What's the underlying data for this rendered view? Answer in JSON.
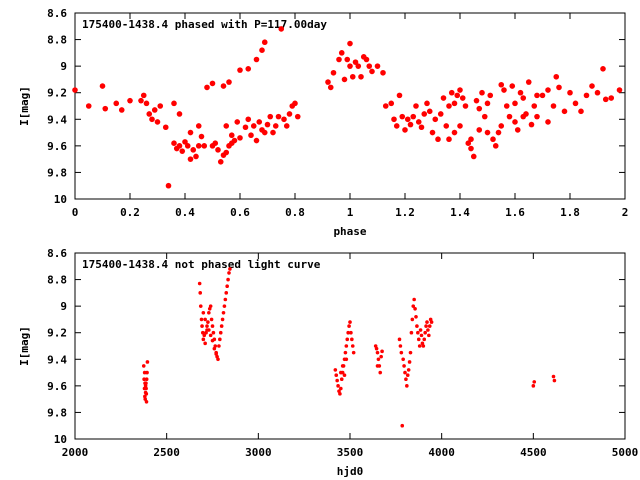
{
  "chart_data": [
    {
      "type": "scatter",
      "title": "175400-1438.4 phased with P=117.00day",
      "xlabel": "phase",
      "ylabel": "I[mag]",
      "xlim": [
        0,
        2
      ],
      "ylim": [
        10,
        8.6
      ],
      "y_inverted": true,
      "x_ticks": [
        0,
        0.2,
        0.4,
        0.6,
        0.8,
        1,
        1.2,
        1.4,
        1.6,
        1.8,
        2
      ],
      "x_tick_labels": [
        "0",
        "0.2",
        "0.4",
        "0.6",
        "0.8",
        "1",
        "1.2",
        "1.4",
        "1.6",
        "1.8",
        "2"
      ],
      "y_ticks": [
        8.6,
        8.8,
        9,
        9.2,
        9.4,
        9.6,
        9.8,
        10
      ],
      "y_tick_labels": [
        "8.6",
        "8.8",
        "9",
        "9.2",
        "9.4",
        "9.6",
        "9.8",
        "10"
      ],
      "grid": false,
      "marker_color": "#ff0000",
      "points": [
        [
          0.0,
          9.18
        ],
        [
          0.05,
          9.3
        ],
        [
          0.1,
          9.15
        ],
        [
          0.11,
          9.32
        ],
        [
          0.15,
          9.28
        ],
        [
          0.17,
          9.33
        ],
        [
          0.2,
          9.26
        ],
        [
          0.24,
          9.26
        ],
        [
          0.25,
          9.22
        ],
        [
          0.26,
          9.28
        ],
        [
          0.27,
          9.36
        ],
        [
          0.28,
          9.4
        ],
        [
          0.29,
          9.33
        ],
        [
          0.3,
          9.42
        ],
        [
          0.31,
          9.3
        ],
        [
          0.33,
          9.46
        ],
        [
          0.34,
          9.9
        ],
        [
          0.36,
          9.28
        ],
        [
          0.36,
          9.58
        ],
        [
          0.37,
          9.62
        ],
        [
          0.38,
          9.36
        ],
        [
          0.38,
          9.6
        ],
        [
          0.39,
          9.64
        ],
        [
          0.4,
          9.57
        ],
        [
          0.41,
          9.6
        ],
        [
          0.42,
          9.7
        ],
        [
          0.42,
          9.5
        ],
        [
          0.43,
          9.63
        ],
        [
          0.44,
          9.68
        ],
        [
          0.45,
          9.45
        ],
        [
          0.45,
          9.6
        ],
        [
          0.46,
          9.53
        ],
        [
          0.47,
          9.6
        ],
        [
          0.48,
          9.16
        ],
        [
          0.5,
          9.13
        ],
        [
          0.5,
          9.6
        ],
        [
          0.51,
          9.58
        ],
        [
          0.52,
          9.63
        ],
        [
          0.53,
          9.72
        ],
        [
          0.54,
          9.67
        ],
        [
          0.55,
          9.65
        ],
        [
          0.55,
          9.45
        ],
        [
          0.56,
          9.6
        ],
        [
          0.57,
          9.58
        ],
        [
          0.57,
          9.52
        ],
        [
          0.58,
          9.56
        ],
        [
          0.59,
          9.42
        ],
        [
          0.6,
          9.54
        ],
        [
          0.6,
          9.03
        ],
        [
          0.62,
          9.46
        ],
        [
          0.63,
          9.4
        ],
        [
          0.64,
          9.52
        ],
        [
          0.65,
          9.45
        ],
        [
          0.66,
          9.56
        ],
        [
          0.67,
          9.42
        ],
        [
          0.68,
          9.48
        ],
        [
          0.69,
          9.5
        ],
        [
          0.7,
          9.44
        ],
        [
          0.71,
          9.38
        ],
        [
          0.72,
          9.5
        ],
        [
          0.73,
          9.45
        ],
        [
          0.74,
          9.38
        ],
        [
          0.75,
          8.72
        ],
        [
          0.76,
          9.4
        ],
        [
          0.77,
          9.45
        ],
        [
          0.78,
          9.36
        ],
        [
          0.79,
          9.3
        ],
        [
          0.8,
          9.28
        ],
        [
          0.81,
          9.38
        ],
        [
          0.54,
          9.15
        ],
        [
          0.56,
          9.12
        ],
        [
          0.63,
          9.02
        ],
        [
          0.66,
          8.95
        ],
        [
          0.68,
          8.88
        ],
        [
          0.69,
          8.82
        ],
        [
          0.92,
          9.12
        ],
        [
          0.93,
          9.16
        ],
        [
          0.94,
          9.05
        ],
        [
          0.96,
          8.95
        ],
        [
          0.97,
          8.9
        ],
        [
          0.98,
          9.1
        ],
        [
          0.99,
          8.95
        ],
        [
          1.0,
          9.0
        ],
        [
          1.0,
          8.83
        ],
        [
          1.01,
          9.08
        ],
        [
          1.02,
          8.97
        ],
        [
          1.03,
          9.0
        ],
        [
          1.04,
          9.08
        ],
        [
          1.05,
          8.93
        ],
        [
          1.06,
          8.95
        ],
        [
          1.07,
          9.0
        ],
        [
          1.08,
          9.04
        ],
        [
          1.1,
          9.0
        ],
        [
          1.12,
          9.05
        ],
        [
          1.13,
          9.3
        ],
        [
          1.15,
          9.28
        ],
        [
          1.16,
          9.4
        ],
        [
          1.17,
          9.45
        ],
        [
          1.18,
          9.22
        ],
        [
          1.19,
          9.38
        ],
        [
          1.2,
          9.48
        ],
        [
          1.21,
          9.4
        ],
        [
          1.22,
          9.44
        ],
        [
          1.23,
          9.38
        ],
        [
          1.24,
          9.3
        ],
        [
          1.25,
          9.42
        ],
        [
          1.26,
          9.46
        ],
        [
          1.27,
          9.36
        ],
        [
          1.28,
          9.28
        ],
        [
          1.29,
          9.34
        ],
        [
          1.3,
          9.5
        ],
        [
          1.31,
          9.4
        ],
        [
          1.32,
          9.55
        ],
        [
          1.33,
          9.36
        ],
        [
          1.34,
          9.24
        ],
        [
          1.35,
          9.45
        ],
        [
          1.36,
          9.3
        ],
        [
          1.37,
          9.2
        ],
        [
          1.38,
          9.28
        ],
        [
          1.39,
          9.22
        ],
        [
          1.4,
          9.18
        ],
        [
          1.41,
          9.24
        ],
        [
          1.42,
          9.3
        ],
        [
          1.43,
          9.58
        ],
        [
          1.44,
          9.62
        ],
        [
          1.45,
          9.68
        ],
        [
          1.46,
          9.26
        ],
        [
          1.47,
          9.32
        ],
        [
          1.48,
          9.2
        ],
        [
          1.49,
          9.38
        ],
        [
          1.5,
          9.28
        ],
        [
          1.51,
          9.22
        ],
        [
          1.52,
          9.55
        ],
        [
          1.53,
          9.6
        ],
        [
          1.54,
          9.5
        ],
        [
          1.55,
          9.14
        ],
        [
          1.56,
          9.18
        ],
        [
          1.57,
          9.3
        ],
        [
          1.58,
          9.38
        ],
        [
          1.59,
          9.15
        ],
        [
          1.6,
          9.28
        ],
        [
          1.61,
          9.48
        ],
        [
          1.62,
          9.2
        ],
        [
          1.63,
          9.24
        ],
        [
          1.64,
          9.36
        ],
        [
          1.65,
          9.12
        ],
        [
          1.66,
          9.44
        ],
        [
          1.67,
          9.3
        ],
        [
          1.68,
          9.38
        ],
        [
          1.7,
          9.22
        ],
        [
          1.72,
          9.42
        ],
        [
          1.74,
          9.3
        ],
        [
          1.76,
          9.16
        ],
        [
          1.78,
          9.34
        ],
        [
          1.8,
          9.2
        ],
        [
          1.82,
          9.28
        ],
        [
          1.84,
          9.34
        ],
        [
          1.86,
          9.22
        ],
        [
          1.88,
          9.15
        ],
        [
          1.9,
          9.2
        ],
        [
          1.92,
          9.02
        ],
        [
          1.93,
          9.25
        ],
        [
          1.95,
          9.24
        ],
        [
          1.98,
          9.18
        ],
        [
          1.36,
          9.55
        ],
        [
          1.38,
          9.5
        ],
        [
          1.4,
          9.45
        ],
        [
          1.44,
          9.55
        ],
        [
          1.47,
          9.48
        ],
        [
          1.5,
          9.5
        ],
        [
          1.55,
          9.45
        ],
        [
          1.6,
          9.42
        ],
        [
          1.63,
          9.38
        ],
        [
          1.68,
          9.22
        ],
        [
          1.72,
          9.18
        ],
        [
          1.75,
          9.08
        ]
      ]
    },
    {
      "type": "scatter",
      "title": "175400-1438.4 not phased light curve",
      "xlabel": "hjd0",
      "ylabel": "I[mag]",
      "xlim": [
        2000,
        5000
      ],
      "ylim": [
        10,
        8.6
      ],
      "y_inverted": true,
      "x_ticks": [
        2000,
        2500,
        3000,
        3500,
        4000,
        4500,
        5000
      ],
      "x_tick_labels": [
        "2000",
        "2500",
        "3000",
        "3500",
        "4000",
        "4500",
        "5000"
      ],
      "y_ticks": [
        8.6,
        8.8,
        9,
        9.2,
        9.4,
        9.6,
        9.8,
        10
      ],
      "y_tick_labels": [
        "8.6",
        "8.8",
        "9",
        "9.2",
        "9.4",
        "9.6",
        "9.8",
        "10"
      ],
      "grid": false,
      "marker_color": "#ff0000",
      "points": [
        [
          2375,
          9.45
        ],
        [
          2377,
          9.55
        ],
        [
          2379,
          9.62
        ],
        [
          2381,
          9.68
        ],
        [
          2383,
          9.7
        ],
        [
          2385,
          9.6
        ],
        [
          2387,
          9.58
        ],
        [
          2389,
          9.66
        ],
        [
          2391,
          9.55
        ],
        [
          2393,
          9.5
        ],
        [
          2395,
          9.42
        ],
        [
          2380,
          9.5
        ],
        [
          2385,
          9.65
        ],
        [
          2390,
          9.72
        ],
        [
          2382,
          9.58
        ],
        [
          2388,
          9.62
        ],
        [
          2680,
          8.83
        ],
        [
          2683,
          8.9
        ],
        [
          2686,
          9.0
        ],
        [
          2690,
          9.1
        ],
        [
          2693,
          9.15
        ],
        [
          2697,
          9.2
        ],
        [
          2700,
          9.25
        ],
        [
          2705,
          9.22
        ],
        [
          2710,
          9.28
        ],
        [
          2715,
          9.2
        ],
        [
          2720,
          9.18
        ],
        [
          2725,
          9.12
        ],
        [
          2730,
          9.05
        ],
        [
          2735,
          9.02
        ],
        [
          2740,
          9.0
        ],
        [
          2745,
          9.1
        ],
        [
          2750,
          9.15
        ],
        [
          2755,
          9.2
        ],
        [
          2760,
          9.25
        ],
        [
          2765,
          9.3
        ],
        [
          2770,
          9.35
        ],
        [
          2775,
          9.38
        ],
        [
          2780,
          9.4
        ],
        [
          2785,
          9.3
        ],
        [
          2790,
          9.25
        ],
        [
          2795,
          9.2
        ],
        [
          2800,
          9.15
        ],
        [
          2805,
          9.1
        ],
        [
          2810,
          9.05
        ],
        [
          2815,
          9.0
        ],
        [
          2820,
          8.95
        ],
        [
          2825,
          8.9
        ],
        [
          2830,
          8.85
        ],
        [
          2835,
          8.8
        ],
        [
          2840,
          8.75
        ],
        [
          2845,
          8.72
        ],
        [
          2700,
          9.05
        ],
        [
          2710,
          9.1
        ],
        [
          2720,
          9.15
        ],
        [
          2730,
          9.18
        ],
        [
          2740,
          9.22
        ],
        [
          2750,
          9.26
        ],
        [
          2760,
          9.32
        ],
        [
          2770,
          9.36
        ],
        [
          3420,
          9.48
        ],
        [
          3425,
          9.52
        ],
        [
          3430,
          9.56
        ],
        [
          3435,
          9.6
        ],
        [
          3440,
          9.64
        ],
        [
          3445,
          9.66
        ],
        [
          3450,
          9.62
        ],
        [
          3455,
          9.55
        ],
        [
          3460,
          9.5
        ],
        [
          3465,
          9.45
        ],
        [
          3470,
          9.4
        ],
        [
          3475,
          9.35
        ],
        [
          3480,
          9.3
        ],
        [
          3485,
          9.25
        ],
        [
          3490,
          9.2
        ],
        [
          3495,
          9.15
        ],
        [
          3500,
          9.12
        ],
        [
          3505,
          9.2
        ],
        [
          3510,
          9.25
        ],
        [
          3515,
          9.3
        ],
        [
          3520,
          9.35
        ],
        [
          3450,
          9.5
        ],
        [
          3460,
          9.45
        ],
        [
          3470,
          9.52
        ],
        [
          3480,
          9.4
        ],
        [
          3640,
          9.3
        ],
        [
          3645,
          9.32
        ],
        [
          3650,
          9.35
        ],
        [
          3655,
          9.4
        ],
        [
          3660,
          9.45
        ],
        [
          3665,
          9.5
        ],
        [
          3670,
          9.38
        ],
        [
          3675,
          9.34
        ],
        [
          3650,
          9.45
        ],
        [
          3770,
          9.25
        ],
        [
          3775,
          9.3
        ],
        [
          3780,
          9.35
        ],
        [
          3785,
          9.9
        ],
        [
          3790,
          9.4
        ],
        [
          3795,
          9.45
        ],
        [
          3800,
          9.5
        ],
        [
          3805,
          9.55
        ],
        [
          3810,
          9.6
        ],
        [
          3815,
          9.52
        ],
        [
          3820,
          9.48
        ],
        [
          3825,
          9.42
        ],
        [
          3830,
          9.35
        ],
        [
          3835,
          9.2
        ],
        [
          3840,
          9.1
        ],
        [
          3845,
          9.0
        ],
        [
          3850,
          8.95
        ],
        [
          3855,
          9.02
        ],
        [
          3860,
          9.08
        ],
        [
          3865,
          9.15
        ],
        [
          3870,
          9.2
        ],
        [
          3875,
          9.25
        ],
        [
          3880,
          9.3
        ],
        [
          3885,
          9.18
        ],
        [
          3890,
          9.22
        ],
        [
          3895,
          9.28
        ],
        [
          3900,
          9.3
        ],
        [
          3905,
          9.25
        ],
        [
          3910,
          9.2
        ],
        [
          3915,
          9.15
        ],
        [
          3920,
          9.12
        ],
        [
          3925,
          9.18
        ],
        [
          3930,
          9.22
        ],
        [
          3935,
          9.15
        ],
        [
          3940,
          9.1
        ],
        [
          3945,
          9.12
        ],
        [
          4500,
          9.6
        ],
        [
          4505,
          9.57
        ],
        [
          4610,
          9.53
        ],
        [
          4615,
          9.56
        ]
      ]
    }
  ]
}
